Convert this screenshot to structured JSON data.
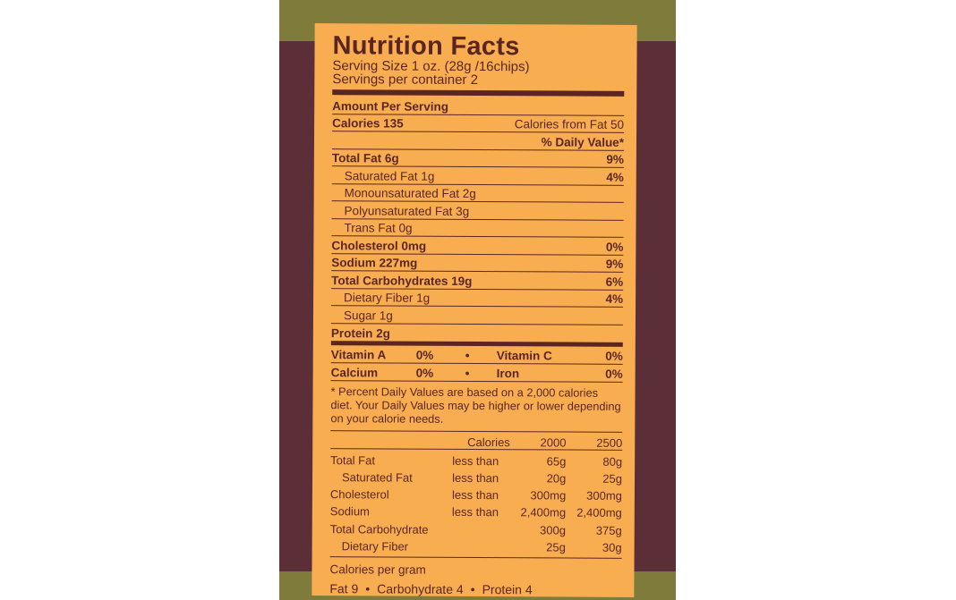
{
  "colors": {
    "label": "#f8ad50",
    "text": "#5b2622",
    "package_maroon": "#5c2f38",
    "package_green": "#7f7b3a"
  },
  "title": "Nutrition Facts",
  "serving_size": "Serving Size 1 oz. (28g /16chips)",
  "servings_per_container": "Servings per container 2",
  "amount_per_serving": "Amount Per Serving",
  "calories": "Calories 135",
  "calories_from_fat": "Calories from Fat 50",
  "daily_value_header": "% Daily Value*",
  "nutrients": [
    {
      "name": "Total Fat 6g",
      "dv": "9%",
      "bold": true,
      "indent": false
    },
    {
      "name": "Saturated Fat 1g",
      "dv": "4%",
      "bold": false,
      "indent": true
    },
    {
      "name": "Monounsaturated Fat 2g",
      "dv": "",
      "bold": false,
      "indent": true
    },
    {
      "name": "Polyunsaturated Fat 3g",
      "dv": "",
      "bold": false,
      "indent": true
    },
    {
      "name": "Trans Fat 0g",
      "dv": "",
      "bold": false,
      "indent": true
    },
    {
      "name": "Cholesterol 0mg",
      "dv": "0%",
      "bold": true,
      "indent": false
    },
    {
      "name": "Sodium 227mg",
      "dv": "9%",
      "bold": true,
      "indent": false
    },
    {
      "name": "Total Carbohydrates 19g",
      "dv": "6%",
      "bold": true,
      "indent": false
    },
    {
      "name": "Dietary Fiber 1g",
      "dv": "4%",
      "bold": false,
      "indent": true
    },
    {
      "name": "Sugar 1g",
      "dv": "",
      "bold": false,
      "indent": true
    },
    {
      "name": "Protein 2g",
      "dv": "",
      "bold": true,
      "indent": false
    }
  ],
  "vitamins": [
    {
      "a": "Vitamin A",
      "a_val": "0%",
      "b": "Vitamin C",
      "b_val": "0%"
    },
    {
      "a": "Calcium",
      "a_val": "0%",
      "b": "Iron",
      "b_val": "0%"
    }
  ],
  "bullet": "•",
  "footnote": "* Percent Daily Values are based on a 2,000 calories diet. Your Daily Values may be higher or lower depending on your calorie needs.",
  "reference_table": {
    "header": [
      "",
      "Calories",
      "2000",
      "2500"
    ],
    "rows": [
      [
        "Total Fat",
        "less than",
        "65g",
        "80g"
      ],
      [
        "Saturated Fat",
        "less than",
        "20g",
        "25g"
      ],
      [
        "Cholesterol",
        "less than",
        "300mg",
        "300mg"
      ],
      [
        "Sodium",
        "less than",
        "2,400mg",
        "2,400mg"
      ],
      [
        "Total Carbohydrate",
        "",
        "300g",
        "375g"
      ],
      [
        "Dietary Fiber",
        "",
        "25g",
        "30g"
      ]
    ]
  },
  "calories_per_gram": "Calories per gram",
  "per_gram": [
    "Fat 9",
    "Carbohydrate 4",
    "Protein 4"
  ]
}
